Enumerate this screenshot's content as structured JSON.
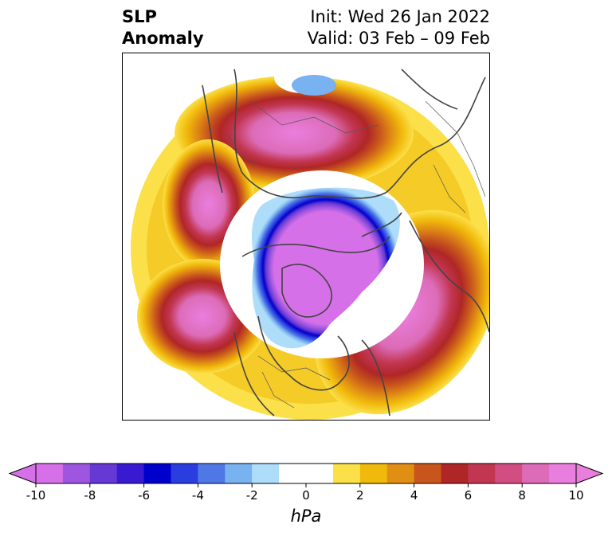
{
  "title": {
    "left_line1": "SLP",
    "left_line2": "Anomaly",
    "right_line1": "Init: Wed 26 Jan 2022",
    "right_line2": "Valid: 03 Feb – 09 Feb"
  },
  "colorbar": {
    "unit": "hPa",
    "min": -10,
    "max": 10,
    "ticks": [
      "-10",
      "-8",
      "-6",
      "-4",
      "-2",
      "0",
      "2",
      "4",
      "6",
      "8",
      "10"
    ],
    "colors": [
      "#d670e8",
      "#9e56e0",
      "#6638d4",
      "#3a1ad0",
      "#0000cc",
      "#2a3ee0",
      "#5077e6",
      "#78b2f0",
      "#aeddfa",
      "#ffffff",
      "#ffffff",
      "#fbe04a",
      "#f1b90b",
      "#e08e14",
      "#c8561c",
      "#b02626",
      "#c23652",
      "#d24e82",
      "#dc6cb8",
      "#ea7ede"
    ],
    "extend_low_color": "#d670e8",
    "extend_high_color": "#ea7ede"
  },
  "map": {
    "projection": "north polar stereographic",
    "variable": "sea level pressure anomaly"
  }
}
